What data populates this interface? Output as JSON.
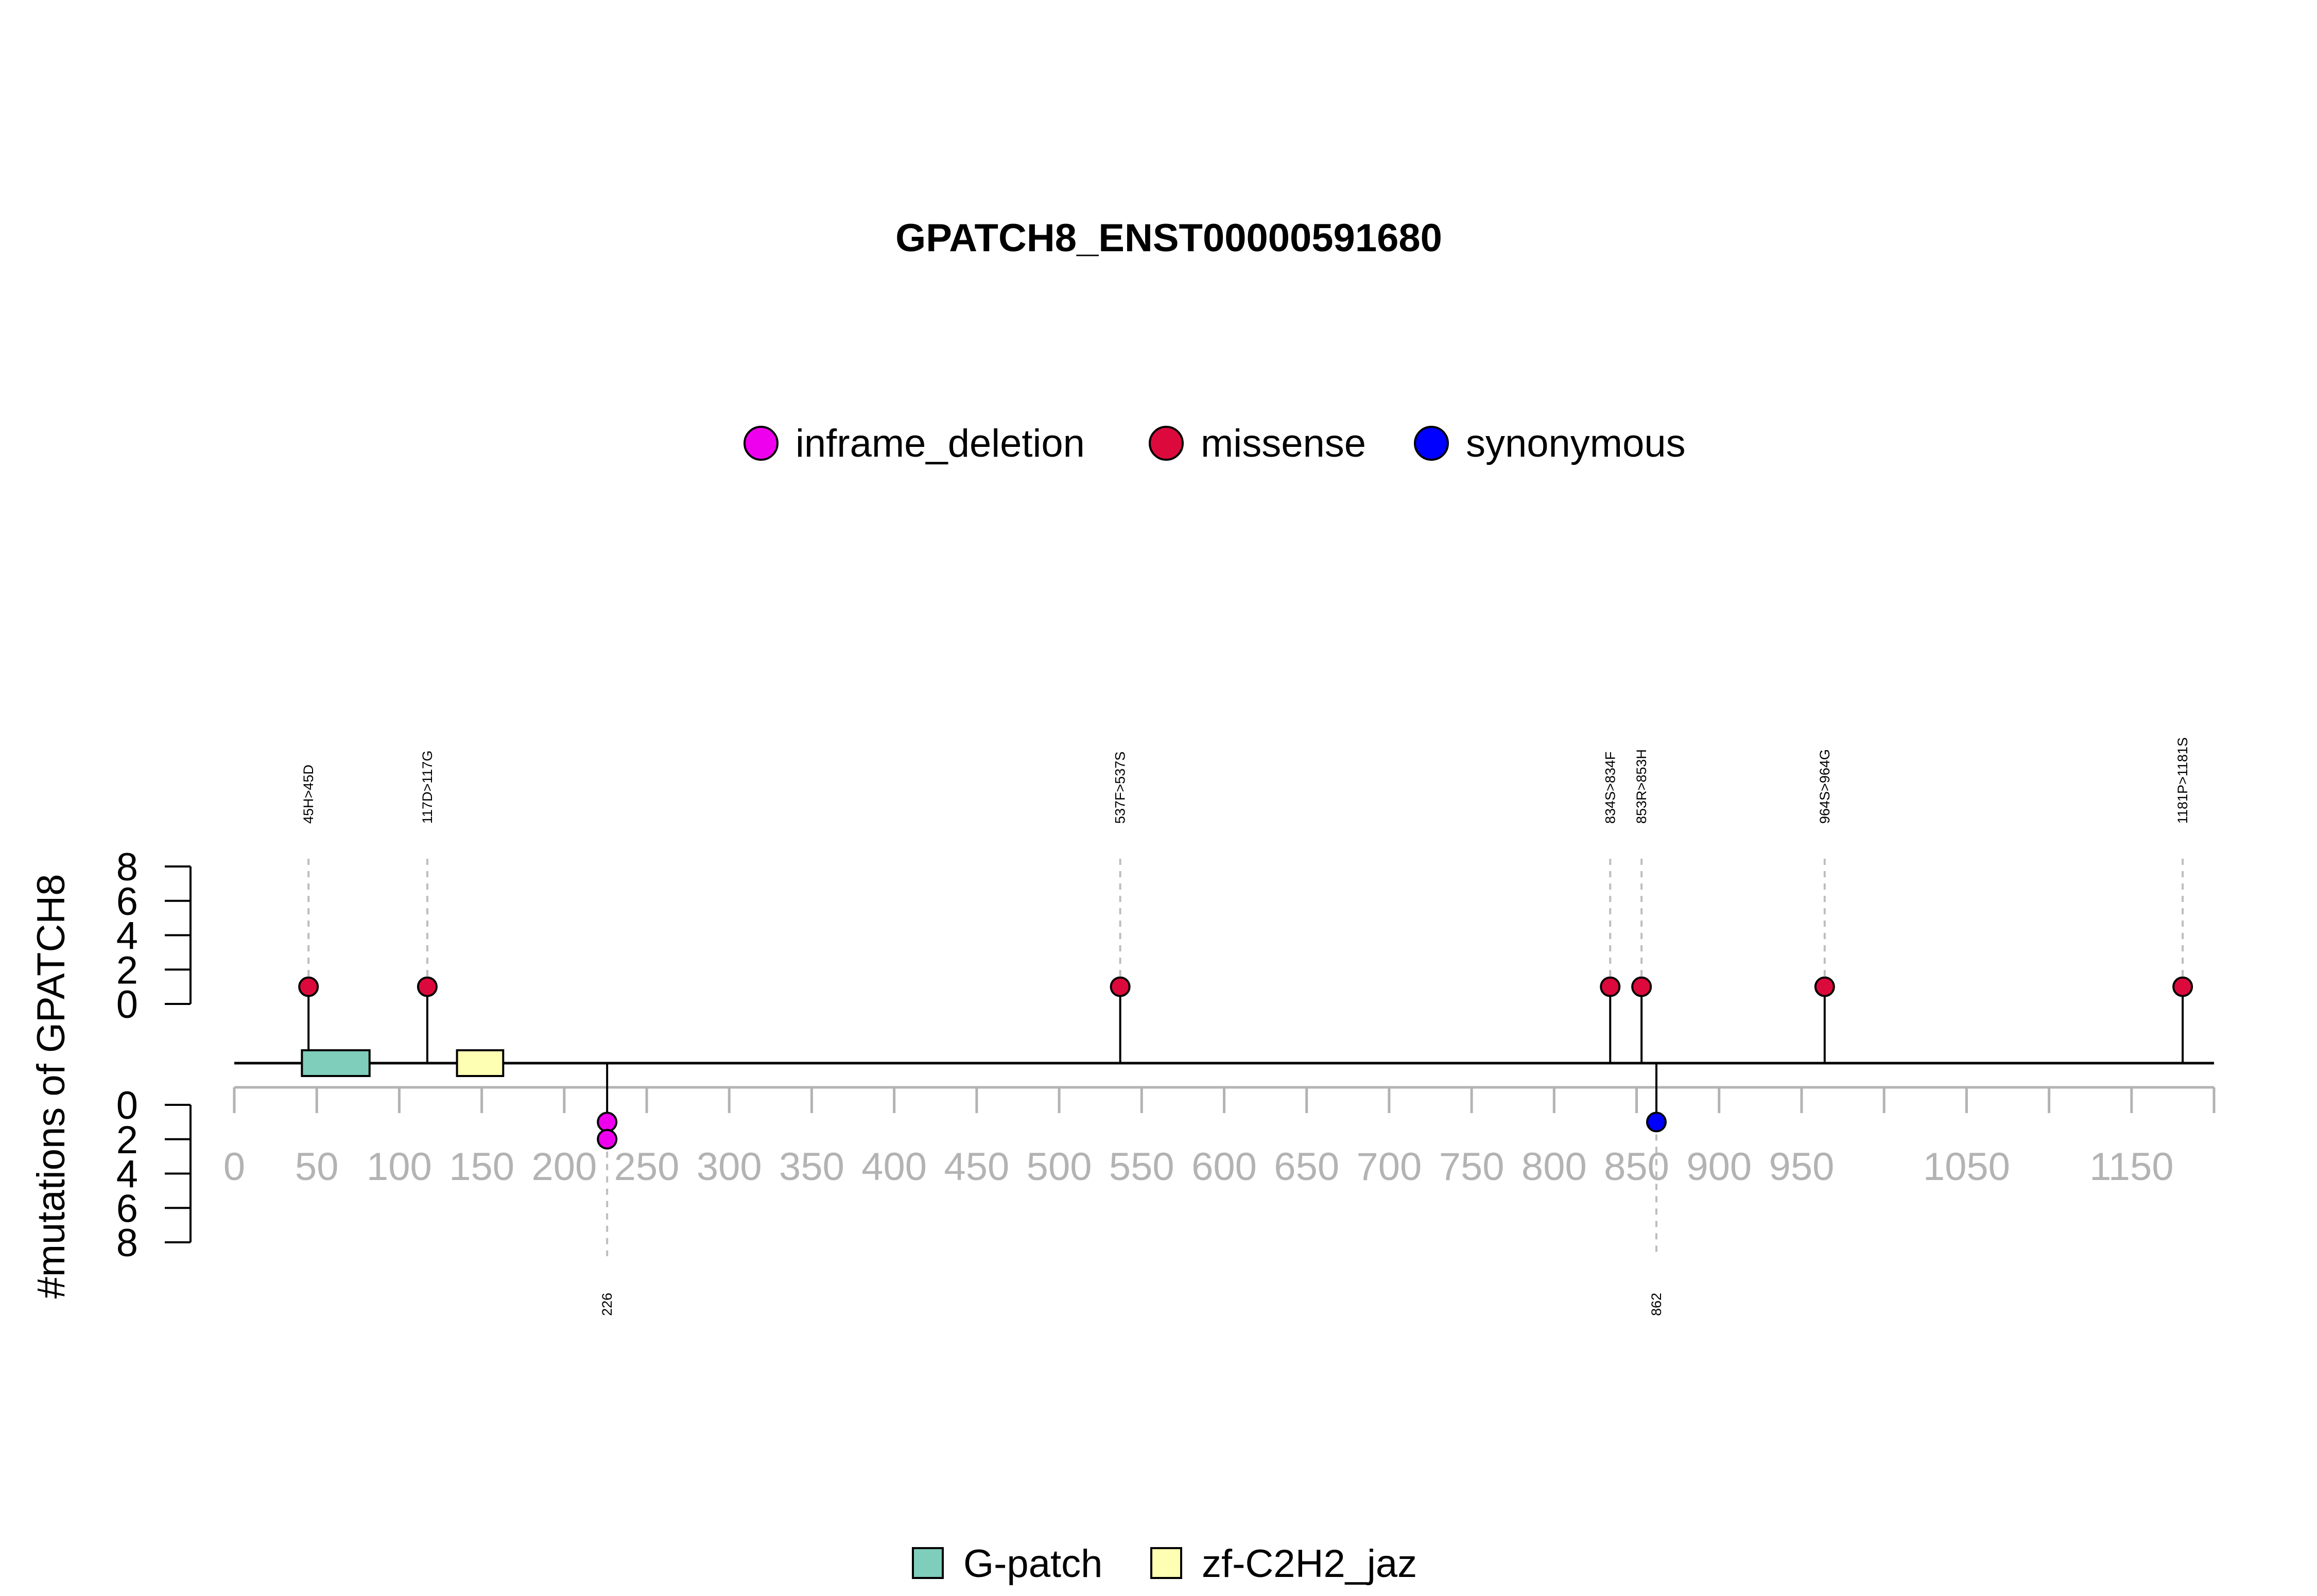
{
  "chart_data": {
    "type": "lollipop",
    "title": "GPATCH8_ENST00000591680",
    "ylabel": "#mutations of GPATCH8",
    "xlim": [
      0,
      1200
    ],
    "x_ticks": [
      0,
      50,
      100,
      150,
      200,
      250,
      300,
      350,
      400,
      450,
      500,
      550,
      600,
      650,
      700,
      750,
      800,
      850,
      900,
      950,
      1050,
      1150
    ],
    "x_tick_marks": [
      0,
      50,
      100,
      150,
      200,
      250,
      300,
      350,
      400,
      450,
      500,
      550,
      600,
      650,
      700,
      750,
      800,
      850,
      900,
      950,
      1000,
      1050,
      1100,
      1150,
      1200
    ],
    "y_ticks": [
      0,
      2,
      4,
      6,
      8
    ],
    "ylim": [
      0,
      8
    ],
    "legend_mutation": [
      {
        "label": "inframe_deletion",
        "color": "#ee00ee"
      },
      {
        "label": "missense",
        "color": "#dc0a3c"
      },
      {
        "label": "synonymous",
        "color": "#0000ff"
      }
    ],
    "legend_domain": [
      {
        "label": "G-patch",
        "color": "#7fcdbb"
      },
      {
        "label": "zf-C2H2_jaz",
        "color": "#ffffb3"
      }
    ],
    "domains": [
      {
        "name": "G-patch",
        "start": 41,
        "end": 82
      },
      {
        "name": "zf-C2H2_jaz",
        "start": 135,
        "end": 163
      }
    ],
    "mutations_top": [
      {
        "position": 45,
        "label": "45H>45D",
        "type": "missense",
        "count": 1
      },
      {
        "position": 117,
        "label": "117D>117G",
        "type": "missense",
        "count": 1
      },
      {
        "position": 537,
        "label": "537F>537S",
        "type": "missense",
        "count": 1
      },
      {
        "position": 834,
        "label": "834S>834F",
        "type": "missense",
        "count": 1
      },
      {
        "position": 853,
        "label": "853R>853H",
        "type": "missense",
        "count": 1
      },
      {
        "position": 964,
        "label": "964S>964G",
        "type": "missense",
        "count": 1
      },
      {
        "position": 1181,
        "label": "1181P>1181S",
        "type": "missense",
        "count": 1
      }
    ],
    "mutations_bottom": [
      {
        "position": 226,
        "label": "226",
        "type": "inframe_deletion",
        "count": 2
      },
      {
        "position": 862,
        "label": "862",
        "type": "synonymous",
        "count": 1
      }
    ]
  }
}
